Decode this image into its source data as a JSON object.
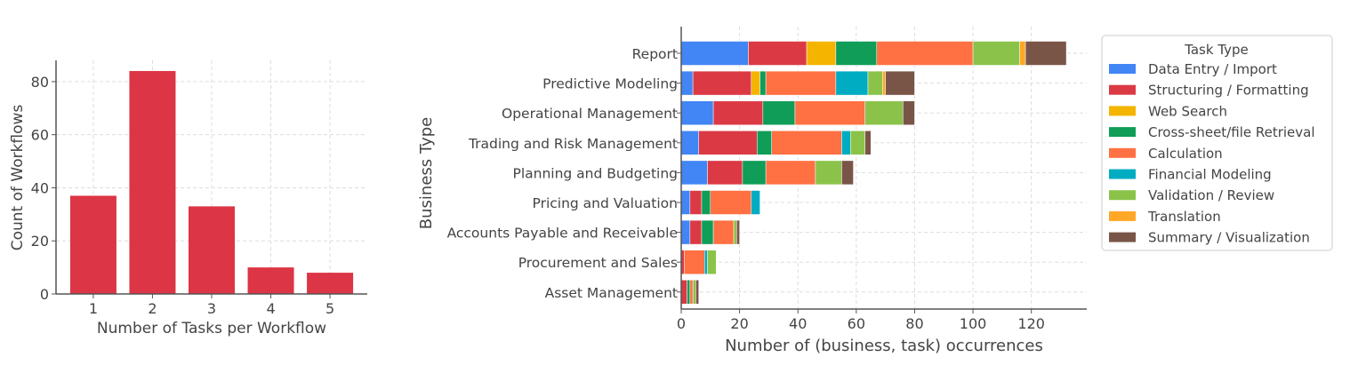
{
  "chart_data": [
    {
      "type": "bar",
      "categories": [
        "1",
        "2",
        "3",
        "4",
        "5"
      ],
      "values": [
        37,
        84,
        33,
        10,
        8
      ],
      "title": "",
      "xlabel": "Number of Tasks per Workflow",
      "ylabel": "Count of Workflows",
      "ylim": [
        0,
        88
      ],
      "yticks": [
        0,
        20,
        40,
        60,
        80
      ],
      "grid": true,
      "color": "#DC3545"
    },
    {
      "type": "bar",
      "orientation": "horizontal",
      "stacked": true,
      "categories": [
        "Report",
        "Predictive Modeling",
        "Operational Management",
        "Trading and Risk Management",
        "Planning and Budgeting",
        "Pricing and Valuation",
        "Accounts Payable and Receivable",
        "Procurement and Sales",
        "Asset Management"
      ],
      "series": [
        {
          "name": "Data Entry / Import",
          "color": "#4285F4",
          "values": [
            23,
            4,
            11,
            6,
            9,
            3,
            3,
            0,
            0
          ]
        },
        {
          "name": "Structuring / Formatting",
          "color": "#DB3A45",
          "values": [
            20,
            20,
            17,
            20,
            12,
            4,
            4,
            1,
            2
          ]
        },
        {
          "name": "Web Search",
          "color": "#F4B400",
          "values": [
            10,
            3,
            0,
            0,
            0,
            0,
            0,
            0,
            0
          ]
        },
        {
          "name": "Cross-sheet/file Retrieval",
          "color": "#0F9D58",
          "values": [
            14,
            2,
            11,
            5,
            8,
            3,
            4,
            0,
            1
          ]
        },
        {
          "name": "Calculation",
          "color": "#FF7043",
          "values": [
            33,
            24,
            24,
            24,
            17,
            14,
            7,
            7,
            1
          ]
        },
        {
          "name": "Financial Modeling",
          "color": "#00ACC1",
          "values": [
            0,
            11,
            0,
            3,
            0,
            3,
            0,
            1,
            0
          ]
        },
        {
          "name": "Validation / Review",
          "color": "#8BC34A",
          "values": [
            16,
            5,
            13,
            5,
            9,
            0,
            1,
            3,
            1
          ]
        },
        {
          "name": "Translation",
          "color": "#FFA726",
          "values": [
            2,
            1,
            0,
            0,
            0,
            0,
            0,
            0,
            0
          ]
        },
        {
          "name": "Summary / Visualization",
          "color": "#795548",
          "values": [
            14,
            10,
            4,
            2,
            4,
            0,
            1,
            0,
            1
          ]
        }
      ],
      "title": "",
      "xlabel": "Number of (business, task) occurrences",
      "ylabel": "Business Type",
      "xlim": [
        0,
        139
      ],
      "xticks": [
        0,
        20,
        40,
        60,
        80,
        100,
        120
      ],
      "grid": true,
      "legend": {
        "title": "Task Type",
        "placement": "right"
      }
    }
  ]
}
